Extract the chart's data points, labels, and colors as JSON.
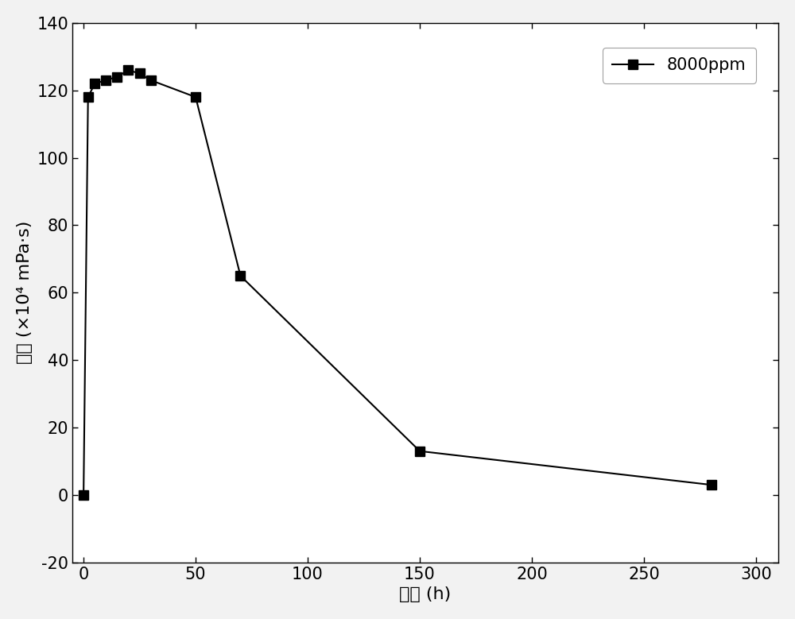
{
  "x": [
    0,
    2,
    5,
    10,
    15,
    20,
    25,
    30,
    50,
    70,
    150,
    280
  ],
  "y": [
    0,
    118,
    122,
    123,
    124,
    126,
    125,
    123,
    118,
    65,
    13,
    3
  ],
  "line_color": "#000000",
  "marker": "s",
  "marker_size": 9,
  "marker_facecolor": "#000000",
  "legend_label": "8000ppm",
  "xlabel_zh": "时间",
  "xlabel_unit": " (h)",
  "ylabel_zh": "粘度",
  "ylabel_unit": " (×10⁴ mPa·s)",
  "xlim": [
    -5,
    310
  ],
  "ylim": [
    -20,
    140
  ],
  "xticks": [
    0,
    50,
    100,
    150,
    200,
    250,
    300
  ],
  "yticks": [
    -20,
    0,
    20,
    40,
    60,
    80,
    100,
    120,
    140
  ],
  "background_color": "#f2f2f2",
  "plot_background": "#ffffff",
  "linewidth": 1.5,
  "tick_fontsize": 15,
  "label_fontsize": 16,
  "legend_fontsize": 15
}
